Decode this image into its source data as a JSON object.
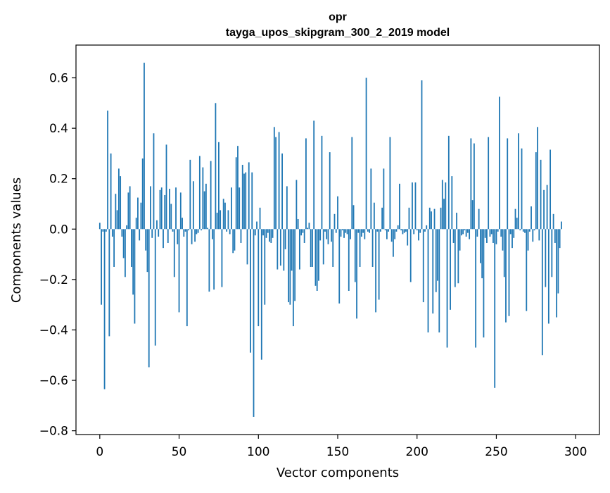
{
  "chart_data": {
    "type": "bar",
    "title": "opr",
    "subtitle": "tayga_upos_skipgram_300_2_2019 model",
    "xlabel": "Vector components",
    "ylabel": "Components values",
    "xlim": [
      -15,
      315
    ],
    "ylim": [
      -0.815,
      0.73
    ],
    "xticks": [
      0,
      50,
      100,
      150,
      200,
      250,
      300
    ],
    "xtick_labels": [
      "0",
      "50",
      "100",
      "150",
      "200",
      "250",
      "300"
    ],
    "yticks": [
      -0.8,
      -0.6,
      -0.4,
      -0.2,
      0.0,
      0.2,
      0.4,
      0.6
    ],
    "ytick_labels": [
      "−0.8",
      "−0.6",
      "−0.4",
      "−0.2",
      "0.0",
      "0.2",
      "0.4",
      "0.6"
    ],
    "bar_color": "#1f77b4",
    "grid": false,
    "series": [
      {
        "name": "opr",
        "x_start": 0,
        "values": [
          0.025,
          -0.3,
          -0.01,
          -0.635,
          -0.01,
          0.47,
          -0.425,
          0.3,
          -0.03,
          -0.15,
          0.14,
          0.075,
          0.24,
          0.21,
          -0.03,
          -0.115,
          -0.19,
          0.015,
          0.145,
          0.17,
          -0.15,
          -0.26,
          -0.375,
          0.045,
          0.125,
          -0.045,
          0.105,
          0.28,
          0.66,
          -0.085,
          -0.17,
          -0.548,
          0.17,
          -0.035,
          0.38,
          -0.462,
          0.035,
          -0.03,
          0.155,
          0.165,
          -0.075,
          0.135,
          0.335,
          -0.055,
          0.16,
          0.1,
          -0.01,
          -0.19,
          0.165,
          -0.06,
          -0.33,
          0.145,
          0.045,
          -0.03,
          -0.01,
          -0.385,
          -0.005,
          0.275,
          -0.06,
          0.19,
          -0.05,
          -0.02,
          -0.015,
          0.29,
          -0.005,
          0.245,
          0.15,
          0.18,
          0.005,
          -0.248,
          0.27,
          -0.04,
          -0.24,
          0.5,
          0.065,
          0.345,
          0.075,
          -0.23,
          0.12,
          0.105,
          -0.01,
          0.075,
          -0.02,
          0.165,
          -0.095,
          -0.085,
          0.285,
          0.33,
          0.165,
          -0.055,
          0.255,
          0.22,
          0.225,
          -0.14,
          0.265,
          -0.49,
          0.225,
          -0.745,
          -0.025,
          0.03,
          -0.385,
          0.085,
          -0.518,
          -0.025,
          -0.3,
          -0.035,
          -0.015,
          -0.05,
          -0.055,
          -0.035,
          0.405,
          0.365,
          -0.16,
          0.385,
          -0.145,
          0.3,
          -0.165,
          -0.08,
          0.17,
          -0.29,
          -0.3,
          -0.165,
          -0.385,
          -0.285,
          0.195,
          0.04,
          -0.16,
          -0.025,
          -0.015,
          -0.055,
          0.36,
          0.005,
          0.025,
          -0.15,
          -0.15,
          0.43,
          -0.225,
          -0.245,
          -0.205,
          -0.045,
          0.37,
          -0.14,
          -0.01,
          -0.04,
          -0.06,
          0.305,
          -0.05,
          -0.15,
          0.06,
          -0.015,
          0.13,
          -0.295,
          -0.03,
          -0.005,
          -0.035,
          -0.015,
          -0.02,
          -0.245,
          -0.04,
          0.365,
          0.095,
          -0.21,
          -0.355,
          -0.015,
          -0.15,
          -0.03,
          -0.015,
          -0.04,
          0.6,
          -0.01,
          -0.015,
          0.24,
          -0.15,
          0.105,
          -0.33,
          -0.01,
          -0.28,
          -0.01,
          0.085,
          0.24,
          -0.005,
          -0.04,
          -0.01,
          0.365,
          -0.05,
          -0.11,
          -0.04,
          -0.01,
          0.015,
          0.18,
          -0.005,
          -0.02,
          -0.015,
          -0.01,
          -0.065,
          0.085,
          -0.21,
          0.185,
          -0.02,
          0.185,
          -0.005,
          -0.045,
          -0.015,
          0.59,
          -0.29,
          -0.01,
          0.015,
          -0.41,
          0.085,
          0.07,
          -0.335,
          0.08,
          -0.25,
          -0.205,
          -0.41,
          0.085,
          0.195,
          0.12,
          0.185,
          -0.47,
          0.37,
          -0.32,
          0.21,
          -0.055,
          -0.23,
          0.065,
          -0.215,
          -0.085,
          -0.025,
          -0.02,
          -0.005,
          -0.03,
          -0.015,
          -0.04,
          0.36,
          0.115,
          0.34,
          -0.47,
          -0.03,
          0.08,
          -0.135,
          -0.195,
          -0.43,
          -0.035,
          -0.055,
          0.365,
          -0.03,
          -0.02,
          -0.055,
          -0.63,
          -0.06,
          -0.01,
          0.525,
          -0.03,
          -0.085,
          -0.19,
          -0.37,
          0.36,
          -0.345,
          -0.02,
          -0.075,
          -0.035,
          0.08,
          0.045,
          0.38,
          -0.005,
          0.32,
          -0.01,
          -0.015,
          -0.325,
          -0.085,
          -0.01,
          0.09,
          -0.05,
          -0.005,
          0.305,
          0.405,
          -0.045,
          0.275,
          -0.5,
          0.155,
          -0.23,
          0.175,
          -0.375,
          0.315,
          -0.19,
          0.06,
          -0.055,
          -0.35,
          -0.255,
          -0.075,
          0.03
        ]
      }
    ]
  }
}
